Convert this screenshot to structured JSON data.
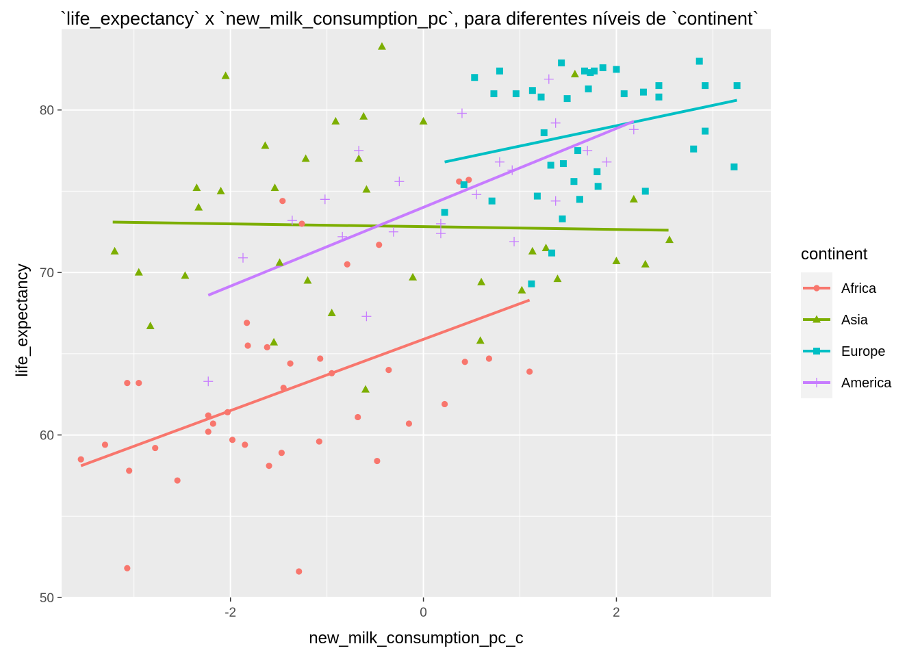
{
  "chart_data": {
    "type": "scatter",
    "title": "`life_expectancy` x `new_milk_consumption_pc`, para diferentes níveis de `continent`",
    "xlabel": "new_milk_consumption_pc_c",
    "ylabel": "life_expectancy",
    "xlim": [
      -3.75,
      3.6
    ],
    "ylim": [
      50,
      85
    ],
    "x_ticks": [
      -2,
      0,
      2
    ],
    "x_tick_labels": [
      "-2",
      "0",
      "2"
    ],
    "y_ticks": [
      50,
      60,
      70,
      80
    ],
    "y_tick_labels": [
      "50",
      "60",
      "70",
      "80"
    ],
    "grid": true,
    "legend": {
      "title": "continent",
      "position": "right"
    },
    "series": [
      {
        "name": "Africa",
        "color": "#F8766D",
        "marker": "circle",
        "fit": [
          [
            -3.55,
            58.1
          ],
          [
            1.1,
            68.3
          ]
        ],
        "points": [
          [
            -3.55,
            58.5
          ],
          [
            -3.3,
            59.4
          ],
          [
            -3.07,
            63.2
          ],
          [
            -3.05,
            57.8
          ],
          [
            -3.07,
            51.8
          ],
          [
            -2.95,
            63.2
          ],
          [
            -2.78,
            59.2
          ],
          [
            -2.55,
            57.2
          ],
          [
            -2.23,
            61.2
          ],
          [
            -2.23,
            60.2
          ],
          [
            -2.18,
            60.7
          ],
          [
            -2.03,
            61.4
          ],
          [
            -1.98,
            59.7
          ],
          [
            -1.85,
            59.4
          ],
          [
            -1.83,
            66.9
          ],
          [
            -1.82,
            65.5
          ],
          [
            -1.62,
            65.4
          ],
          [
            -1.6,
            58.1
          ],
          [
            -1.47,
            58.9
          ],
          [
            -1.46,
            74.4
          ],
          [
            -1.45,
            62.9
          ],
          [
            -1.38,
            64.4
          ],
          [
            -1.26,
            73.0
          ],
          [
            -1.29,
            51.6
          ],
          [
            -1.08,
            59.6
          ],
          [
            -1.07,
            64.7
          ],
          [
            -0.95,
            63.8
          ],
          [
            -0.79,
            70.5
          ],
          [
            -0.68,
            61.1
          ],
          [
            -0.48,
            58.4
          ],
          [
            -0.46,
            71.7
          ],
          [
            -0.36,
            64.0
          ],
          [
            -0.15,
            60.7
          ],
          [
            0.22,
            61.9
          ],
          [
            0.37,
            75.6
          ],
          [
            0.47,
            75.7
          ],
          [
            0.43,
            64.5
          ],
          [
            0.68,
            64.7
          ],
          [
            1.1,
            63.9
          ]
        ]
      },
      {
        "name": "Asia",
        "color": "#7CAE00",
        "marker": "triangle",
        "fit": [
          [
            -3.22,
            73.1
          ],
          [
            2.54,
            72.6
          ]
        ],
        "points": [
          [
            -3.2,
            71.3
          ],
          [
            -2.95,
            70.0
          ],
          [
            -2.83,
            66.7
          ],
          [
            -2.47,
            69.8
          ],
          [
            -2.35,
            75.2
          ],
          [
            -2.33,
            74.0
          ],
          [
            -2.1,
            75.0
          ],
          [
            -2.05,
            82.1
          ],
          [
            -1.64,
            77.8
          ],
          [
            -1.54,
            75.2
          ],
          [
            -1.55,
            65.7
          ],
          [
            -1.49,
            70.6
          ],
          [
            -1.22,
            77.0
          ],
          [
            -1.2,
            69.5
          ],
          [
            -0.95,
            67.5
          ],
          [
            -0.91,
            79.3
          ],
          [
            -0.67,
            77.0
          ],
          [
            -0.62,
            79.6
          ],
          [
            -0.6,
            62.8
          ],
          [
            -0.59,
            75.1
          ],
          [
            -0.43,
            83.9
          ],
          [
            -0.11,
            69.7
          ],
          [
            0.0,
            79.3
          ],
          [
            0.59,
            65.8
          ],
          [
            0.6,
            69.4
          ],
          [
            1.02,
            68.9
          ],
          [
            1.13,
            71.3
          ],
          [
            1.27,
            71.5
          ],
          [
            1.39,
            69.6
          ],
          [
            1.57,
            82.2
          ],
          [
            2.0,
            70.7
          ],
          [
            2.18,
            74.5
          ],
          [
            2.3,
            70.5
          ],
          [
            2.55,
            72.0
          ]
        ]
      },
      {
        "name": "Europe",
        "color": "#00BFC4",
        "marker": "square",
        "fit": [
          [
            0.22,
            76.8
          ],
          [
            3.25,
            80.6
          ]
        ],
        "points": [
          [
            0.22,
            73.7
          ],
          [
            0.42,
            75.4
          ],
          [
            0.53,
            82.0
          ],
          [
            0.71,
            74.4
          ],
          [
            0.73,
            81.0
          ],
          [
            0.79,
            82.4
          ],
          [
            0.96,
            81.0
          ],
          [
            1.12,
            69.3
          ],
          [
            1.13,
            81.2
          ],
          [
            1.18,
            74.7
          ],
          [
            1.22,
            80.8
          ],
          [
            1.25,
            78.6
          ],
          [
            1.32,
            76.6
          ],
          [
            1.33,
            71.2
          ],
          [
            1.43,
            82.9
          ],
          [
            1.44,
            73.3
          ],
          [
            1.45,
            76.7
          ],
          [
            1.49,
            80.7
          ],
          [
            1.56,
            75.6
          ],
          [
            1.6,
            77.5
          ],
          [
            1.62,
            74.5
          ],
          [
            1.67,
            82.4
          ],
          [
            1.71,
            81.3
          ],
          [
            1.73,
            82.3
          ],
          [
            1.77,
            82.4
          ],
          [
            1.8,
            76.2
          ],
          [
            1.81,
            75.3
          ],
          [
            1.86,
            82.6
          ],
          [
            2.0,
            82.5
          ],
          [
            2.08,
            81.0
          ],
          [
            2.3,
            75.0
          ],
          [
            2.28,
            81.1
          ],
          [
            2.44,
            80.8
          ],
          [
            2.44,
            81.5
          ],
          [
            2.8,
            77.6
          ],
          [
            2.86,
            83.0
          ],
          [
            2.92,
            81.5
          ],
          [
            2.92,
            78.7
          ],
          [
            3.22,
            76.5
          ],
          [
            3.25,
            81.5
          ]
        ]
      },
      {
        "name": "America",
        "color": "#C77CFF",
        "marker": "plus",
        "fit": [
          [
            -2.23,
            68.6
          ],
          [
            2.18,
            79.3
          ]
        ],
        "points": [
          [
            -2.23,
            63.3
          ],
          [
            -1.87,
            70.9
          ],
          [
            -1.36,
            73.2
          ],
          [
            -1.02,
            74.5
          ],
          [
            -0.84,
            72.2
          ],
          [
            -0.67,
            77.5
          ],
          [
            -0.59,
            67.3
          ],
          [
            -0.31,
            72.5
          ],
          [
            -0.25,
            75.6
          ],
          [
            0.18,
            73.0
          ],
          [
            0.18,
            72.4
          ],
          [
            0.4,
            79.8
          ],
          [
            0.55,
            74.8
          ],
          [
            0.79,
            76.8
          ],
          [
            0.92,
            76.3
          ],
          [
            0.94,
            71.9
          ],
          [
            1.3,
            81.9
          ],
          [
            1.37,
            79.2
          ],
          [
            1.37,
            74.4
          ],
          [
            1.7,
            77.5
          ],
          [
            1.9,
            76.8
          ],
          [
            2.18,
            78.8
          ]
        ]
      }
    ]
  }
}
